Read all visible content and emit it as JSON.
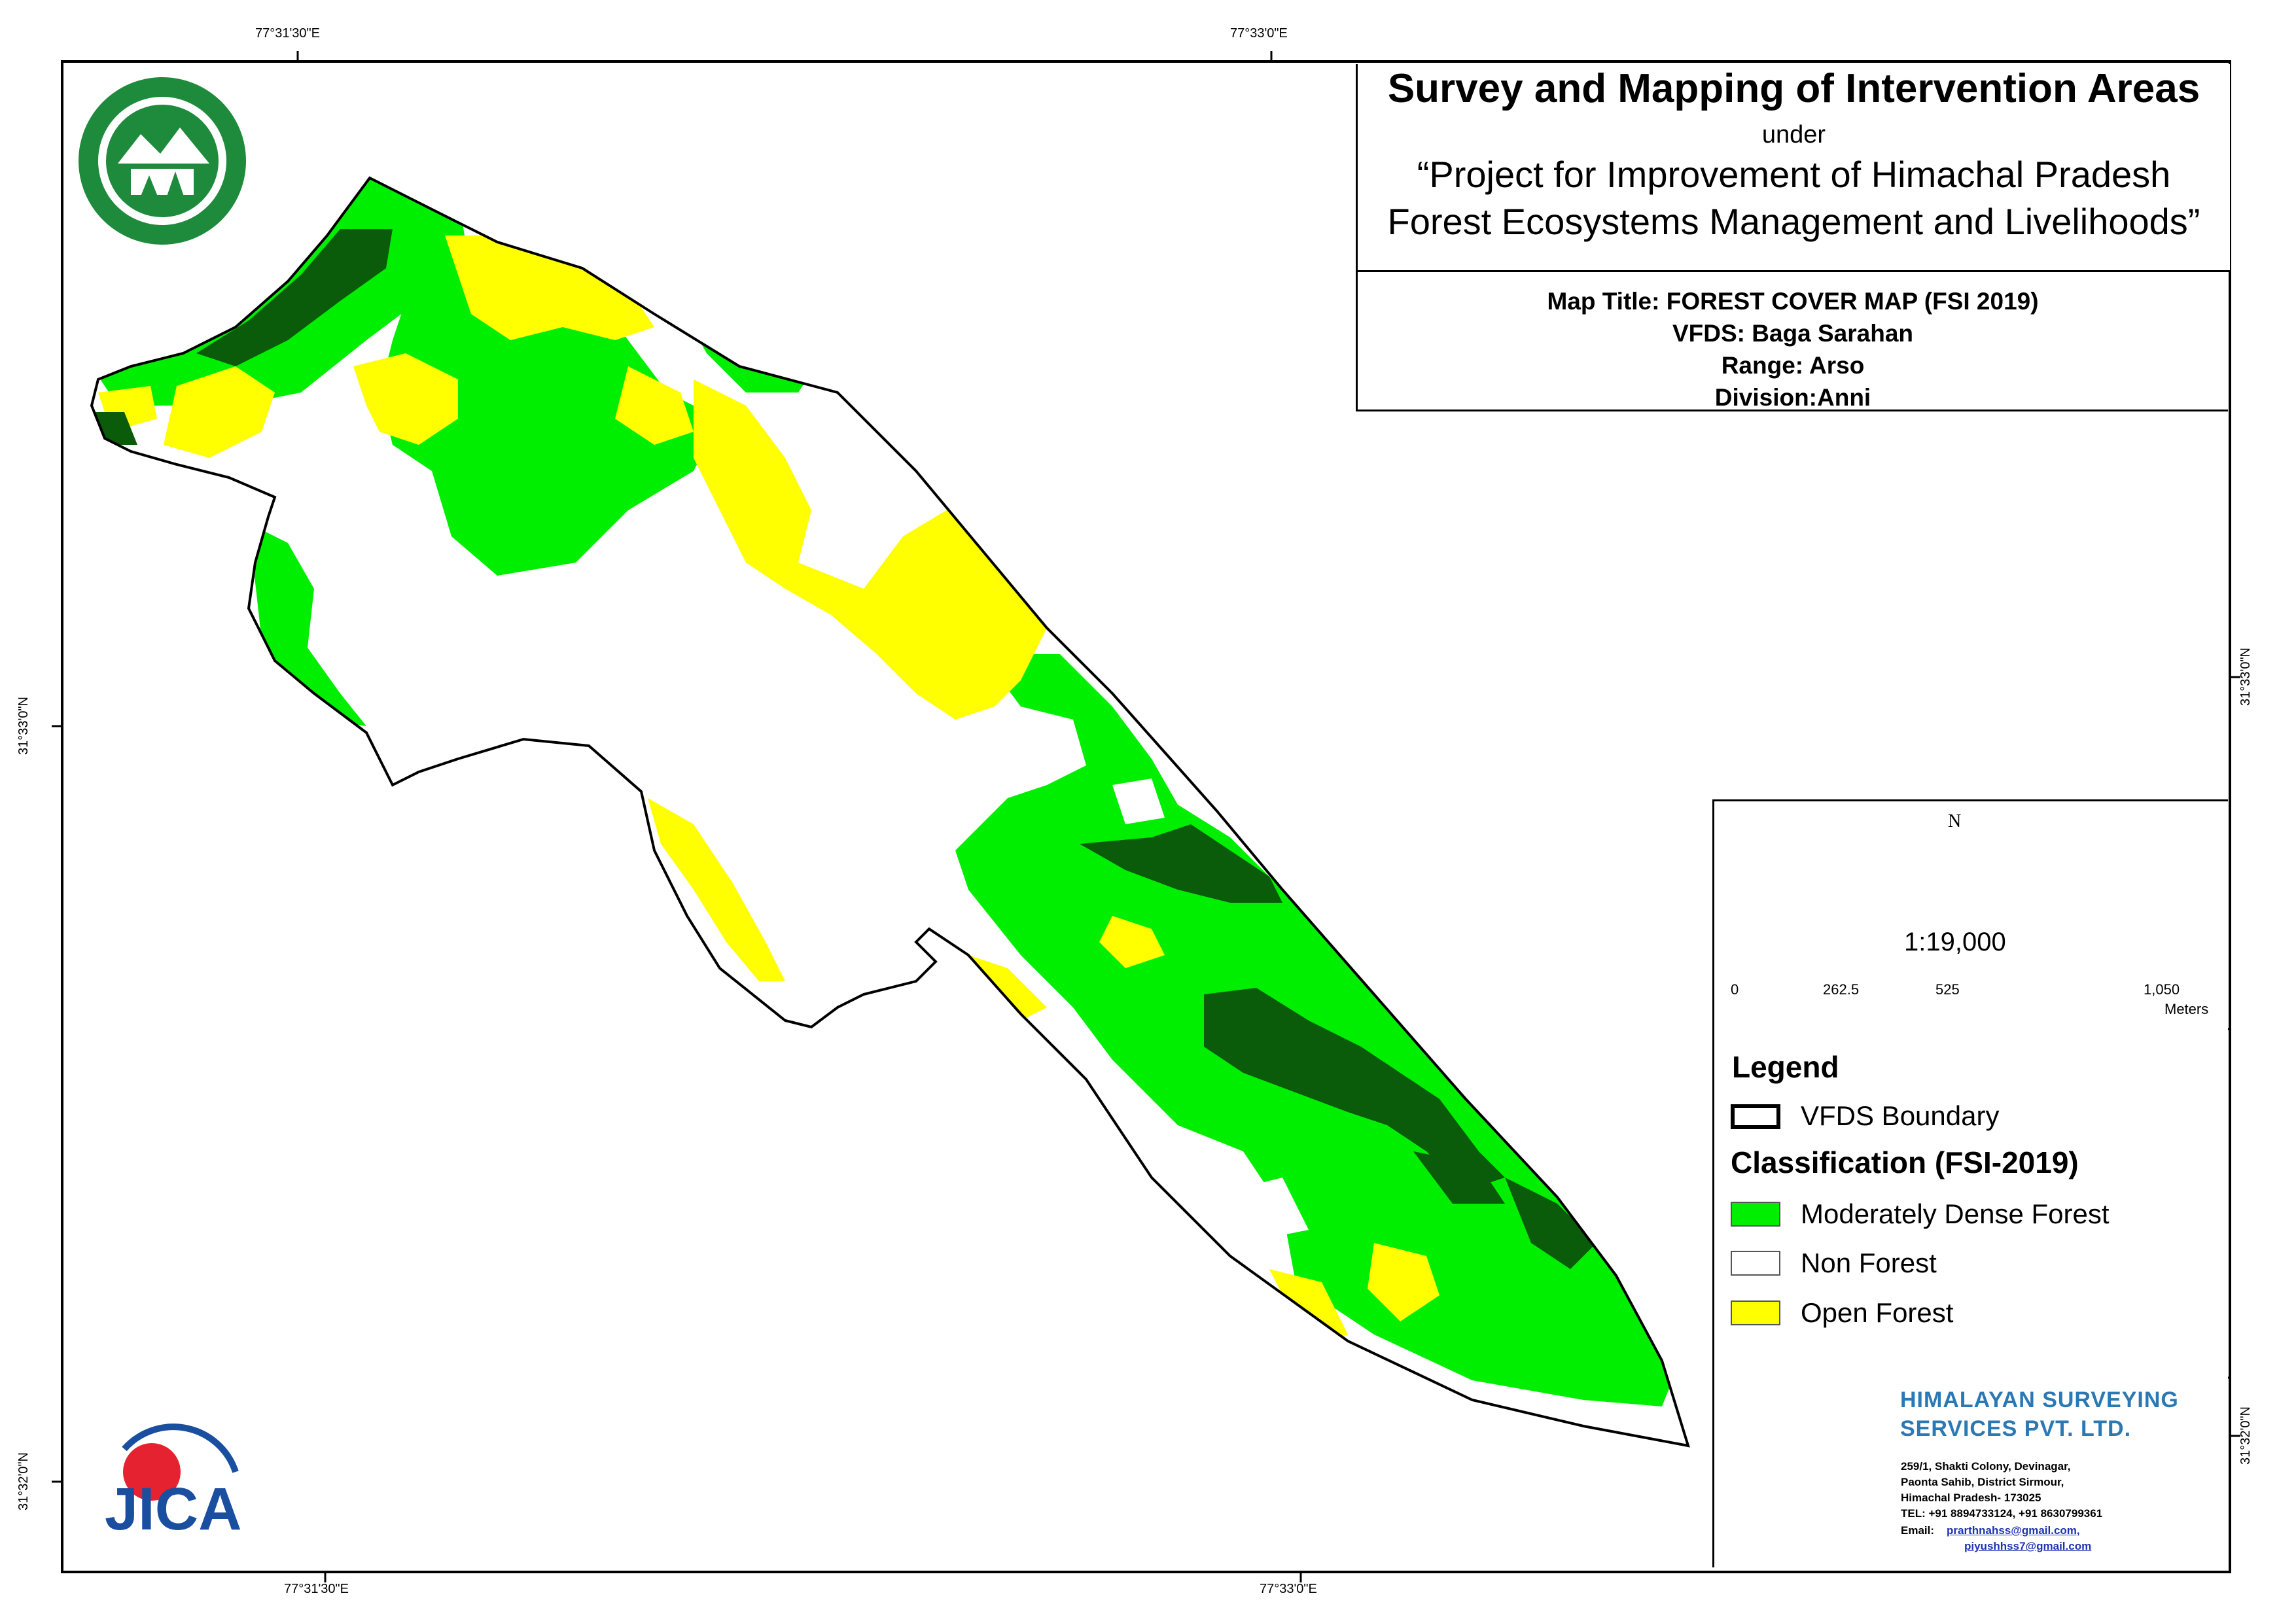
{
  "coordinates": {
    "top": [
      "77°31'30\"E",
      "77°33'0\"E"
    ],
    "bottom": [
      "77°31'30\"E",
      "77°33'0\"E"
    ],
    "left": [
      "31°33'0\"N",
      "31°32'0\"N"
    ],
    "right": [
      "31°33'0\"N",
      "31°32'0\"N"
    ]
  },
  "title": {
    "main": "Survey and Mapping of Intervention Areas",
    "under": "under",
    "project_line1": "“Project for Improvement of Himachal Pradesh",
    "project_line2": "Forest Ecosystems Management and Livelihoods”"
  },
  "info": {
    "map_title": "Map Title: FOREST COVER MAP (FSI 2019)",
    "vfds": "VFDS: Baga Sarahan",
    "range": "Range: Arso",
    "division": "Division:Anni"
  },
  "north_label": "N",
  "scale": {
    "ratio": "1:19,000",
    "ticks": [
      "0",
      "262.5",
      "525",
      "1,050"
    ],
    "unit": "Meters"
  },
  "legend": {
    "heading": "Legend",
    "boundary_label": "VFDS Boundary",
    "classification_heading": "Classification (FSI-2019)",
    "items": [
      {
        "label": "Moderately Dense Forest",
        "color": "#00ee00"
      },
      {
        "label": "Non Forest",
        "color": "#ffffff"
      },
      {
        "label": "Open Forest",
        "color": "#ffff00"
      }
    ],
    "very_dense_color": "#0a5c0a"
  },
  "company": {
    "name_line1": "HIMALAYAN SURVEYING",
    "name_line2": "SERVICES PVT. LTD.",
    "address1": "259/1, Shakti Colony, Devinagar,",
    "address2": "Paonta Sahib, District Sirmour,",
    "address3": "Himachal Pradesh- 173025",
    "tel": "TEL: +91 8894733124, +91 8630799361",
    "email_label": "Email:",
    "email1": "prarthnahss@gmail.com,",
    "email2": "piyushhss7@gmail.com"
  },
  "logos": {
    "forest_dept_icon": "hp-forest-department-seal",
    "jica_text": "JICA"
  }
}
